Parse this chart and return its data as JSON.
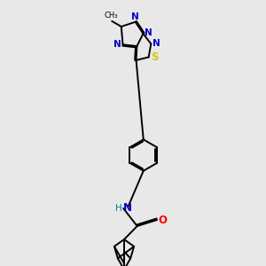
{
  "bg_color": "#e8e8e8",
  "bond_color": "#000000",
  "N_color": "#0000cc",
  "S_color": "#cccc00",
  "O_color": "#ff0000",
  "H_color": "#008080",
  "lw": 1.4,
  "fs": 7.5,
  "xlim": [
    0,
    10
  ],
  "ylim": [
    0,
    17
  ]
}
